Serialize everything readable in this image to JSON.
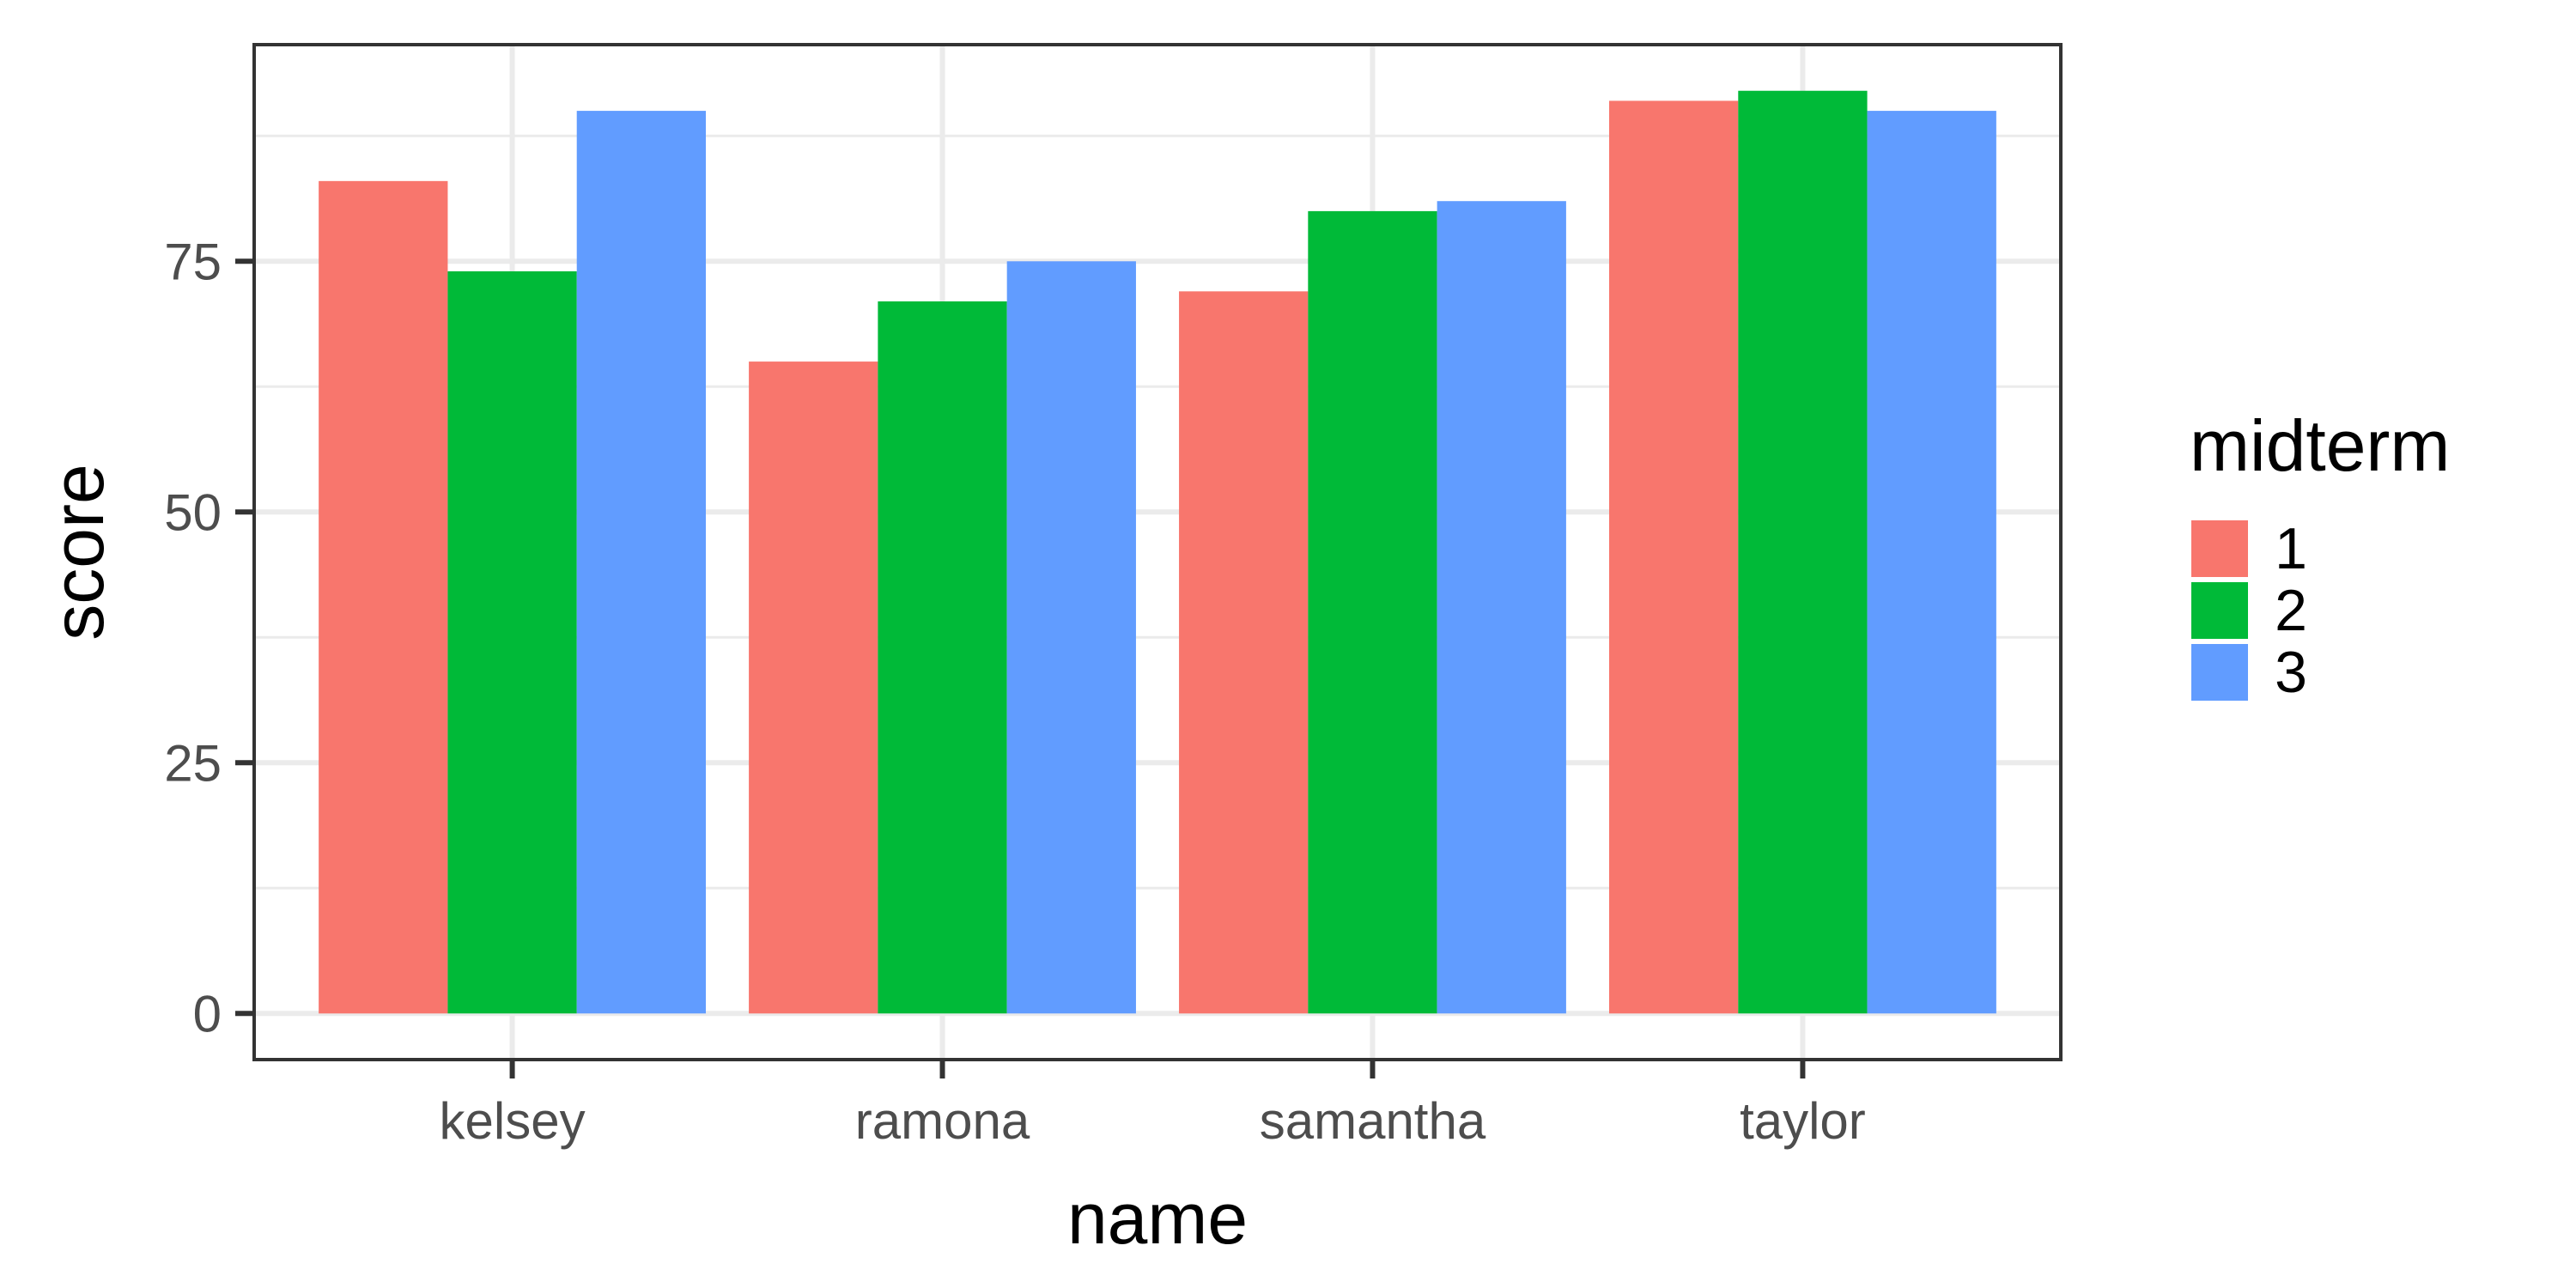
{
  "chart_data": {
    "type": "bar",
    "categories": [
      "kelsey",
      "ramona",
      "samantha",
      "taylor"
    ],
    "series": [
      {
        "name": "1",
        "values": [
          83,
          65,
          72,
          91
        ],
        "color": "#F8766D"
      },
      {
        "name": "2",
        "values": [
          74,
          71,
          80,
          92
        ],
        "color": "#00BA38"
      },
      {
        "name": "3",
        "values": [
          90,
          75,
          81,
          90
        ],
        "color": "#619CFF"
      }
    ],
    "title": "",
    "xlabel": "name",
    "ylabel": "score",
    "ylim": [
      -4.6,
      96.6
    ],
    "yticks": [
      0,
      25,
      50,
      75
    ],
    "yticks_labels": [
      "0",
      "25",
      "50",
      "75"
    ],
    "grid": true,
    "legend": {
      "title": "midterm",
      "position": "right"
    },
    "theme": {
      "panel_border": "#333333",
      "grid_color": "#ebebeb",
      "tick_color": "#333333"
    }
  }
}
